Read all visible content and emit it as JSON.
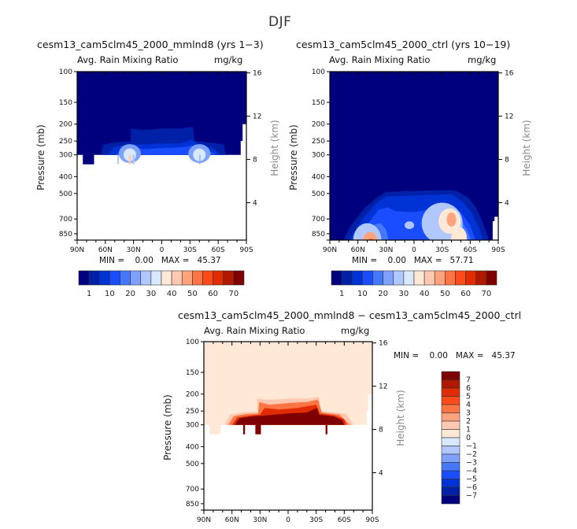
{
  "page_title": "DJF",
  "chart_data": [
    {
      "type": "heatmap",
      "id": "panel1",
      "title": "cesm13_cam5clm45_2000_mmlnd8 (yrs 1−3)",
      "subtitle_left": "Avg. Rain Mixing Ratio",
      "subtitle_right": "mg/kg",
      "xlabel": "",
      "ylabel": "Pressure (mb)",
      "ylabel_right": "Height (km)",
      "x_ticks": [
        "90N",
        "60N",
        "30N",
        "0",
        "30S",
        "60S",
        "90S"
      ],
      "y_ticks": [
        "100",
        "150",
        "200",
        "250",
        "300",
        "400",
        "500",
        "700",
        "850"
      ],
      "y_ticks_right": [
        "16",
        "12",
        "8",
        "4"
      ],
      "xlim": [
        90,
        -90
      ],
      "ylim": [
        100,
        1000
      ],
      "min_label": "MIN =",
      "min_value": "0.00",
      "max_label": "MAX =",
      "max_value": "45.37",
      "colorbar": {
        "orientation": "horizontal",
        "labels": [
          "1",
          "10",
          "20",
          "30",
          "40",
          "50",
          "60",
          "70"
        ],
        "colors": [
          "#00007f",
          "#0020a8",
          "#0033d6",
          "#1a4dff",
          "#4479ff",
          "#7ea1ff",
          "#b0c8ff",
          "#d8e8ff",
          "#ffe8d6",
          "#ffc8b0",
          "#ffa27e",
          "#ff7444",
          "#ff4a1a",
          "#e02c00",
          "#b01800",
          "#7f0000"
        ]
      },
      "description": "Mostly dark blue (lowest level) above ~300 mb; light blue/white enhancement near 35N and 40S at ~300 mb; white (missing) below ~300 mb"
    },
    {
      "type": "heatmap",
      "id": "panel2",
      "title": "cesm13_cam5clm45_2000_ctrl (yrs 10−19)",
      "subtitle_left": "Avg. Rain Mixing Ratio",
      "subtitle_right": "mg/kg",
      "xlabel": "",
      "ylabel": "Pressure (mb)",
      "ylabel_right": "Height (km)",
      "x_ticks": [
        "90N",
        "60N",
        "30N",
        "0",
        "30S",
        "60S",
        "90S"
      ],
      "y_ticks": [
        "100",
        "150",
        "200",
        "250",
        "300",
        "400",
        "500",
        "700",
        "850"
      ],
      "y_ticks_right": [
        "16",
        "12",
        "8",
        "4"
      ],
      "xlim": [
        90,
        -90
      ],
      "ylim": [
        100,
        1000
      ],
      "min_label": "MIN =",
      "min_value": "0.00",
      "max_label": "MAX =",
      "max_value": "57.71",
      "colorbar": {
        "orientation": "horizontal",
        "labels": [
          "1",
          "10",
          "20",
          "30",
          "40",
          "50",
          "60",
          "70"
        ],
        "colors": [
          "#00007f",
          "#0020a8",
          "#0033d6",
          "#1a4dff",
          "#4479ff",
          "#7ea1ff",
          "#b0c8ff",
          "#d8e8ff",
          "#ffe8d6",
          "#ffc8b0",
          "#ffa27e",
          "#ff7444",
          "#ff4a1a",
          "#e02c00",
          "#b01800",
          "#7f0000"
        ]
      },
      "description": "Dark blue upper troposphere; lower troposphere (below ~480 mb) shows blue dome with maxima near 40N at ~900 mb and near 40S at ~700 mb"
    },
    {
      "type": "heatmap",
      "id": "panel3",
      "title": "cesm13_cam5clm45_2000_mmlnd8 − cesm13_cam5clm45_2000_ctrl",
      "subtitle_left": "Avg. Rain Mixing Ratio",
      "subtitle_right": "mg/kg",
      "xlabel": "",
      "ylabel": "Pressure (mb)",
      "ylabel_right": "Height (km)",
      "x_ticks": [
        "90N",
        "60N",
        "30N",
        "0",
        "30S",
        "60S",
        "90S"
      ],
      "y_ticks": [
        "100",
        "150",
        "200",
        "250",
        "300",
        "400",
        "500",
        "700",
        "850"
      ],
      "y_ticks_right": [
        "16",
        "12",
        "8",
        "4"
      ],
      "xlim": [
        90,
        -90
      ],
      "ylim": [
        100,
        1000
      ],
      "min_label": "MIN =",
      "min_value": "0.00",
      "max_label": "MAX =",
      "max_value": "45.37",
      "colorbar": {
        "orientation": "vertical",
        "labels": [
          "7",
          "6",
          "5",
          "4",
          "3",
          "2",
          "1",
          "0",
          "−1",
          "−2",
          "−3",
          "−4",
          "−5",
          "−6",
          "−7"
        ],
        "colors": [
          "#7f0000",
          "#b01800",
          "#e02c00",
          "#ff4a1a",
          "#ff7444",
          "#ffa27e",
          "#ffc8b0",
          "#ffe8d6",
          "#d8e8ff",
          "#b0c8ff",
          "#7ea1ff",
          "#4479ff",
          "#1a4dff",
          "#0033d6",
          "#0020a8",
          "#00007f"
        ]
      },
      "description": "Pale peach (0-1) above; dark red (>7) band 250-300 mb between ~65N and ~60S with orange gradations up to ~210 mb between 30N and 30S; white below ~300 mb"
    }
  ]
}
